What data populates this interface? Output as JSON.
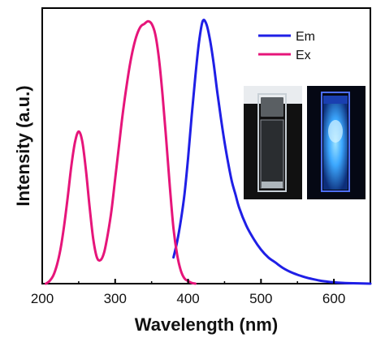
{
  "chart_data": {
    "type": "line",
    "xlabel": "Wavelength (nm)",
    "ylabel": "Intensity (a.u.)",
    "xlim": [
      200,
      650
    ],
    "ylim": [
      0,
      1.05
    ],
    "xticks": [
      200,
      300,
      400,
      500,
      600
    ],
    "yticks_shown": false,
    "grid": false,
    "legend": {
      "placement": "top-right"
    },
    "series": [
      {
        "name": "Em",
        "color": "#1f1fe6",
        "x": [
          380,
          385,
          390,
          395,
          400,
          405,
          410,
          415,
          420,
          425,
          430,
          435,
          440,
          445,
          450,
          455,
          460,
          465,
          470,
          480,
          490,
          500,
          510,
          520,
          530,
          540,
          550,
          560,
          570,
          580,
          590,
          600,
          620,
          650
        ],
        "y": [
          0.1,
          0.16,
          0.24,
          0.34,
          0.48,
          0.64,
          0.79,
          0.92,
          1.0,
          0.99,
          0.93,
          0.84,
          0.73,
          0.63,
          0.54,
          0.46,
          0.39,
          0.34,
          0.29,
          0.22,
          0.17,
          0.13,
          0.1,
          0.08,
          0.06,
          0.045,
          0.034,
          0.025,
          0.018,
          0.012,
          0.008,
          0.005,
          0.002,
          0.0
        ]
      },
      {
        "name": "Ex",
        "color": "#e6157a",
        "x": [
          205,
          210,
          215,
          220,
          225,
          230,
          235,
          240,
          245,
          250,
          255,
          260,
          265,
          270,
          275,
          280,
          285,
          290,
          295,
          300,
          305,
          310,
          315,
          320,
          325,
          330,
          335,
          340,
          345,
          350,
          355,
          360,
          365,
          370,
          375,
          380,
          385,
          390,
          395,
          400,
          405,
          410
        ],
        "y": [
          0.0,
          0.01,
          0.03,
          0.07,
          0.13,
          0.22,
          0.33,
          0.45,
          0.54,
          0.58,
          0.54,
          0.43,
          0.29,
          0.17,
          0.1,
          0.09,
          0.12,
          0.19,
          0.28,
          0.4,
          0.52,
          0.64,
          0.74,
          0.83,
          0.9,
          0.95,
          0.98,
          0.99,
          1.0,
          0.99,
          0.95,
          0.86,
          0.72,
          0.55,
          0.37,
          0.21,
          0.11,
          0.05,
          0.02,
          0.01,
          0.003,
          0.0
        ]
      }
    ]
  },
  "inset_photos": [
    {
      "name": "cuvette-daylight-photo",
      "background": "#111111",
      "liquid": "#cfd8e0",
      "glow": false
    },
    {
      "name": "cuvette-uv-photo",
      "background": "#050814",
      "liquid": "#3f8cff",
      "glow": true
    }
  ]
}
